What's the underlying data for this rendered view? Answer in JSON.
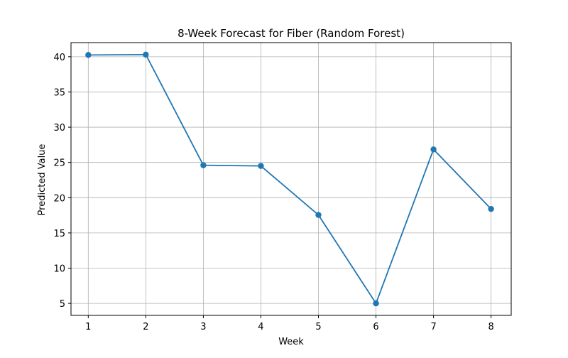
{
  "chart_data": {
    "type": "line",
    "title": "8-Week Forecast for Fiber (Random Forest)",
    "xlabel": "Week",
    "ylabel": "Predicted Value",
    "x": [
      1,
      2,
      3,
      4,
      5,
      6,
      7,
      8
    ],
    "series": [
      {
        "values": [
          40.25,
          40.3,
          24.6,
          24.5,
          17.55,
          5.0,
          26.85,
          18.4
        ],
        "color": "#1f77b4",
        "marker": "circle"
      }
    ],
    "x_ticks": [
      1,
      2,
      3,
      4,
      5,
      6,
      7,
      8
    ],
    "y_ticks": [
      5,
      10,
      15,
      20,
      25,
      30,
      35,
      40
    ],
    "xlim": [
      0.7,
      8.35
    ],
    "ylim": [
      3.3,
      42.0
    ],
    "grid": true
  }
}
